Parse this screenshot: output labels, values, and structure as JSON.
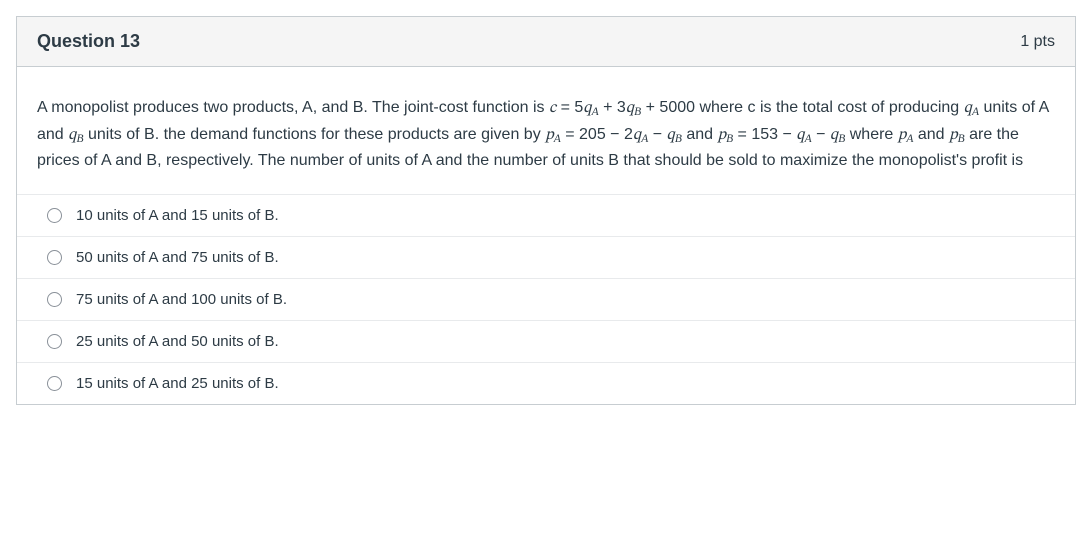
{
  "header": {
    "title": "Question 13",
    "points": "1 pts"
  },
  "stem": {
    "part1": "A monopolist produces two products, A, and B. The joint-cost function is ",
    "eq_c_lhs": "c",
    "eq_eq": " = ",
    "eq_c_rhs_5": "5",
    "eq_c_rhs_qA_q": "q",
    "eq_c_rhs_qA_A": "A",
    "eq_c_rhs_plus1": " + ",
    "eq_c_rhs_3": "3",
    "eq_c_rhs_qB_q": "q",
    "eq_c_rhs_qB_B": "B",
    "eq_c_rhs_plus2": " + ",
    "eq_c_rhs_5000": "5000",
    "part2": " where c is the total cost of producing ",
    "qA_q": "q",
    "qA_A": "A",
    "part3": " units of A and ",
    "qB_q": "q",
    "qB_B": "B",
    "part4": " units of B. the demand functions for these products are given by ",
    "pA_p": "p",
    "pA_A": "A",
    "eq2": " = ",
    "n205": "205",
    "minus1": " − ",
    "n2": "2",
    "qA2_q": "q",
    "qA2_A": "A",
    "minus2": " − ",
    "qB2_q": "q",
    "qB2_B": "B",
    "and1": " and ",
    "pB_p": "p",
    "pB_B": "B",
    "eq3": " = ",
    "n153": "153",
    "minus3": " − ",
    "qA3_q": "q",
    "qA3_A": "A",
    "minus4": " − ",
    "qB3_q": "q",
    "qB3_B": "B",
    "part5": " where ",
    "pA2_p": "p",
    "pA2_A": "A",
    "and2": " and ",
    "pB2_p": "p",
    "pB2_B": "B",
    "part6": " are the prices of A and B, respectively. The number of units of A and the number of units B that should be sold to maximize the monopolist's profit is"
  },
  "answers": [
    {
      "label": "10 units of A and 15 units of B."
    },
    {
      "label": "50 units of A and 75 units of B."
    },
    {
      "label": "75 units of A and 100 units of B."
    },
    {
      "label": "25 units of A and 50 units of B."
    },
    {
      "label": "15 units of A and 25 units of B."
    }
  ]
}
